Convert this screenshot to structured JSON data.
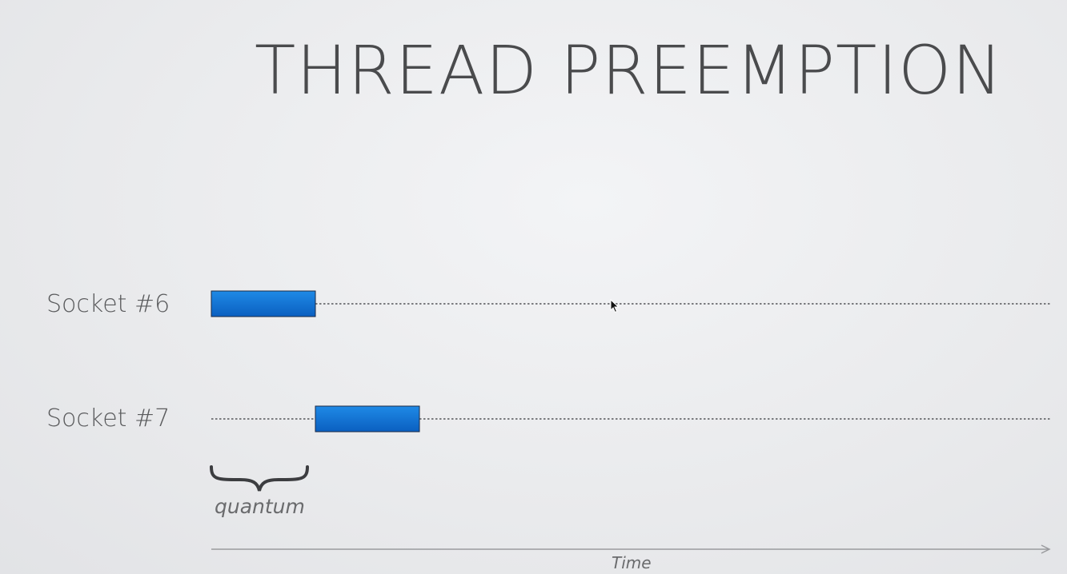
{
  "slide": {
    "title": "THREAD PREEMPTION"
  },
  "rows": [
    {
      "label": "Socket #6",
      "blocks": [
        {
          "start_quantum": 0,
          "length_quanta": 1
        }
      ]
    },
    {
      "label": "Socket #7",
      "blocks": [
        {
          "start_quantum": 1,
          "length_quanta": 1
        }
      ]
    }
  ],
  "annotations": {
    "quantum_label": "quantum",
    "time_axis_label": "Time"
  },
  "colors": {
    "block_fill_top": "#1f8ae6",
    "block_fill_bottom": "#0a5fc0",
    "block_stroke": "#1d2a44",
    "text": "#4a4b4d",
    "dotted_line": "#55565a",
    "axis": "#9a9b9e"
  },
  "icons": {
    "brace": "curly-brace-icon",
    "cursor": "mouse-pointer-icon",
    "axis_arrow": "arrow-right-icon"
  }
}
